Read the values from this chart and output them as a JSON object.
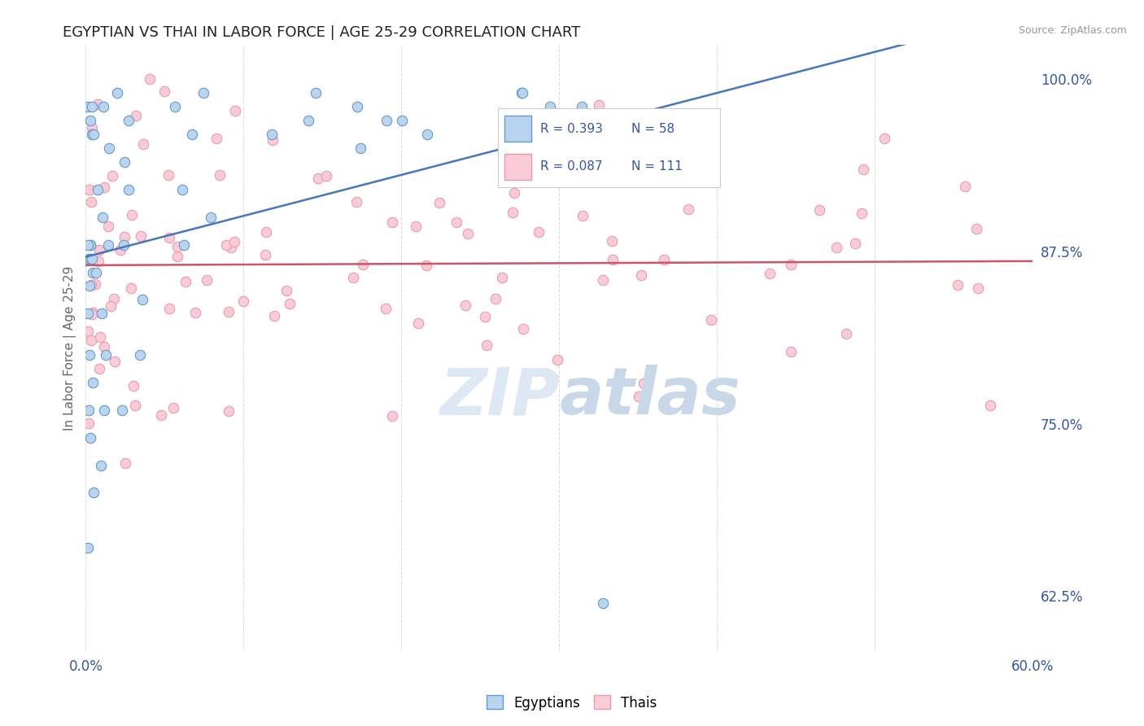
{
  "title": "EGYPTIAN VS THAI IN LABOR FORCE | AGE 25-29 CORRELATION CHART",
  "source_text": "Source: ZipAtlas.com",
  "ylabel": "In Labor Force | Age 25-29",
  "xlim": [
    0.0,
    0.6
  ],
  "ylim": [
    0.585,
    1.025
  ],
  "xticks": [
    0.0,
    0.1,
    0.2,
    0.3,
    0.4,
    0.5,
    0.6
  ],
  "xticklabels": [
    "0.0%",
    "",
    "",
    "",
    "",
    "",
    "60.0%"
  ],
  "right_ytick_positions": [
    1.0,
    0.875,
    0.75,
    0.625
  ],
  "right_ytick_labels": [
    "100.0%",
    "87.5%",
    "75.0%",
    "62.5%"
  ],
  "blue_color": "#b8d4ee",
  "blue_edge_color": "#6699cc",
  "pink_color": "#f9ccd8",
  "pink_edge_color": "#ee99aa",
  "blue_R": 0.393,
  "blue_N": 58,
  "pink_R": 0.087,
  "pink_N": 111,
  "trend_blue_color": "#4477bb",
  "trend_pink_color": "#cc5566",
  "legend_R_N_color": "#3355aa",
  "background_color": "#ffffff",
  "grid_color": "#dddddd",
  "title_color": "#222222",
  "marker_size": 80,
  "watermark_color": "#dde8f4",
  "watermark_color2": "#c8d8e8"
}
